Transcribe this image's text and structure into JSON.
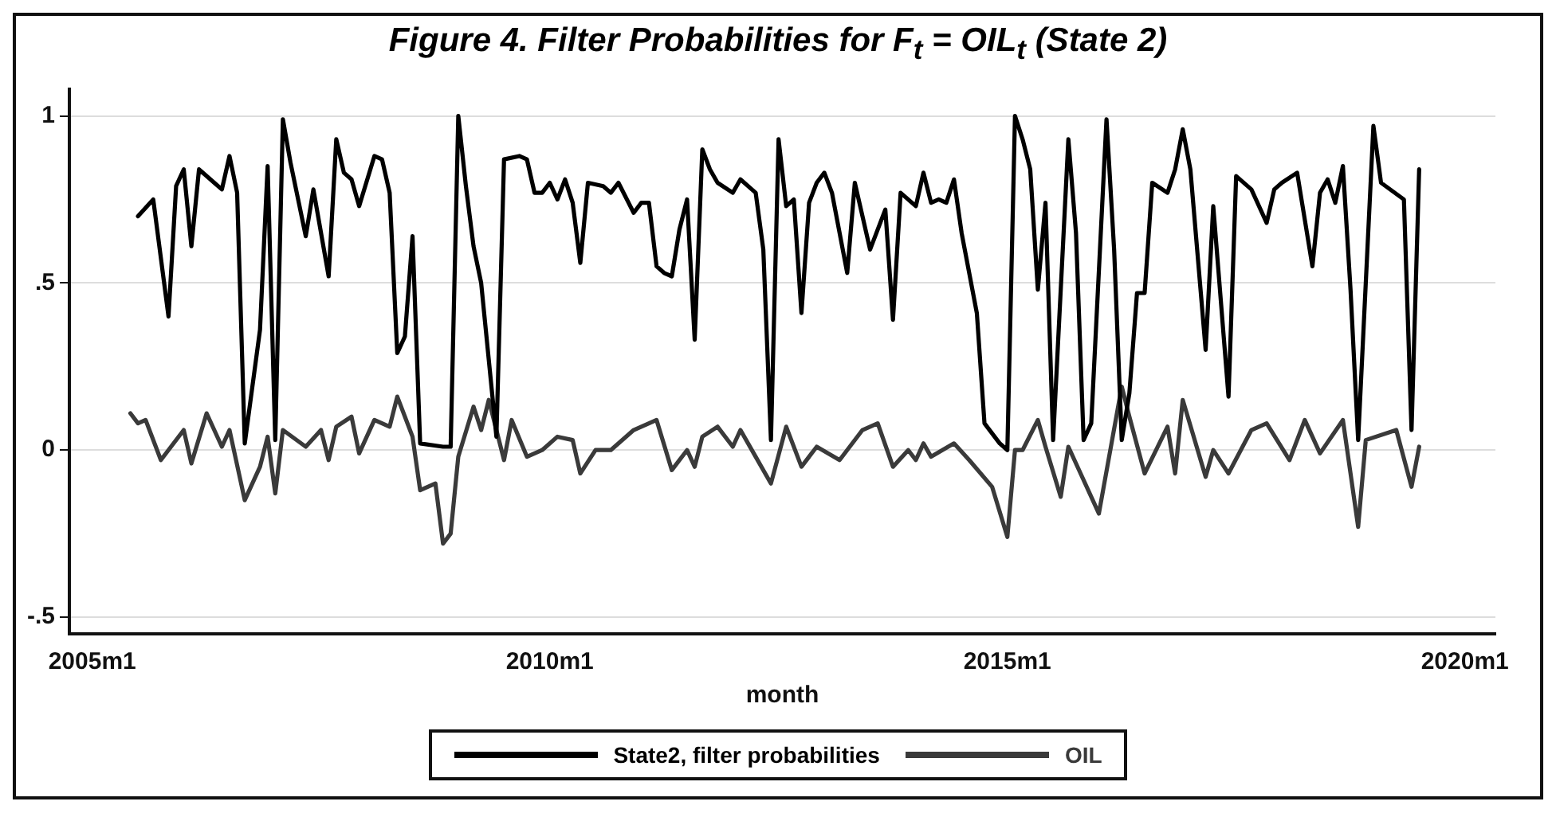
{
  "chart_data": {
    "type": "line",
    "title": "Figure 4. Filter Probabilities for F$_{t}$ = OIL$_{t}$ (State 2)",
    "xlabel": "month",
    "xlim": [
      "2004-10",
      "2020-05"
    ],
    "xticks": [
      {
        "value": "2005-01",
        "label": "2005m1"
      },
      {
        "value": "2010-01",
        "label": "2010m1"
      },
      {
        "value": "2015-01",
        "label": "2015m1"
      },
      {
        "value": "2020-01",
        "label": "2020m1"
      }
    ],
    "ylim": [
      -0.55,
      1.08
    ],
    "yticks": [
      {
        "value": -0.5,
        "label": "-.5"
      },
      0,
      {
        "value": 0.5,
        "label": ".5"
      },
      1
    ],
    "grid": "y",
    "legend": "bottom",
    "series": [
      {
        "name": "State2, filter probabilities",
        "color": "#000000",
        "x": [
          "2005-07",
          "2005-09",
          "2005-11",
          "2005-12",
          "2006-01",
          "2006-02",
          "2006-03",
          "2006-05",
          "2006-06",
          "2006-07",
          "2006-08",
          "2006-09",
          "2006-11",
          "2006-12",
          "2007-01",
          "2007-02",
          "2007-03",
          "2007-05",
          "2007-06",
          "2007-08",
          "2007-09",
          "2007-10",
          "2007-11",
          "2007-12",
          "2008-02",
          "2008-03",
          "2008-04",
          "2008-05",
          "2008-06",
          "2008-07",
          "2008-08",
          "2008-11",
          "2008-12",
          "2009-01",
          "2009-02",
          "2009-03",
          "2009-04",
          "2009-06",
          "2009-07",
          "2009-09",
          "2009-10",
          "2009-11",
          "2009-12",
          "2010-01",
          "2010-02",
          "2010-03",
          "2010-04",
          "2010-05",
          "2010-06",
          "2010-08",
          "2010-09",
          "2010-10",
          "2010-12",
          "2011-01",
          "2011-02",
          "2011-03",
          "2011-04",
          "2011-05",
          "2011-06",
          "2011-07",
          "2011-08",
          "2011-09",
          "2011-10",
          "2011-11",
          "2012-01",
          "2012-02",
          "2012-04",
          "2012-05",
          "2012-06",
          "2012-07",
          "2012-08",
          "2012-09",
          "2012-10",
          "2012-11",
          "2012-12",
          "2013-01",
          "2013-02",
          "2013-04",
          "2013-05",
          "2013-07",
          "2013-09",
          "2013-10",
          "2013-11",
          "2014-01",
          "2014-02",
          "2014-03",
          "2014-04",
          "2014-05",
          "2014-06",
          "2014-07",
          "2014-09",
          "2014-10",
          "2014-12",
          "2015-01",
          "2015-02",
          "2015-03",
          "2015-04",
          "2015-05",
          "2015-06",
          "2015-07",
          "2015-09",
          "2015-10",
          "2015-11",
          "2015-12",
          "2016-02",
          "2016-03",
          "2016-04",
          "2016-05",
          "2016-06",
          "2016-07",
          "2016-08",
          "2016-10",
          "2016-11",
          "2016-12",
          "2017-01",
          "2017-03",
          "2017-04",
          "2017-06",
          "2017-07",
          "2017-09",
          "2017-11",
          "2017-12",
          "2018-01",
          "2018-03",
          "2018-05",
          "2018-06",
          "2018-07",
          "2018-08",
          "2018-09",
          "2018-10",
          "2018-11",
          "2019-01",
          "2019-02",
          "2019-05",
          "2019-06",
          "2019-07"
        ],
        "values": [
          0.7,
          0.75,
          0.4,
          0.79,
          0.84,
          0.61,
          0.84,
          0.8,
          0.78,
          0.88,
          0.77,
          0.02,
          0.36,
          0.85,
          0.03,
          0.99,
          0.86,
          0.64,
          0.78,
          0.52,
          0.93,
          0.83,
          0.81,
          0.73,
          0.88,
          0.87,
          0.77,
          0.29,
          0.34,
          0.64,
          0.02,
          0.01,
          0.01,
          1.0,
          0.79,
          0.61,
          0.5,
          0.04,
          0.87,
          0.88,
          0.87,
          0.77,
          0.77,
          0.8,
          0.75,
          0.81,
          0.74,
          0.56,
          0.8,
          0.79,
          0.77,
          0.8,
          0.71,
          0.74,
          0.74,
          0.55,
          0.53,
          0.52,
          0.66,
          0.75,
          0.33,
          0.9,
          0.84,
          0.8,
          0.77,
          0.81,
          0.77,
          0.6,
          0.03,
          0.93,
          0.73,
          0.75,
          0.41,
          0.74,
          0.8,
          0.83,
          0.77,
          0.53,
          0.8,
          0.6,
          0.72,
          0.39,
          0.77,
          0.73,
          0.83,
          0.74,
          0.75,
          0.74,
          0.81,
          0.65,
          0.41,
          0.08,
          0.02,
          0.0,
          1.0,
          0.93,
          0.84,
          0.48,
          0.74,
          0.03,
          0.93,
          0.65,
          0.03,
          0.08,
          0.99,
          0.6,
          0.03,
          0.17,
          0.47,
          0.47,
          0.8,
          0.77,
          0.84,
          0.96,
          0.84,
          0.3,
          0.73,
          0.16,
          0.82,
          0.78,
          0.68,
          0.78,
          0.8,
          0.83,
          0.55,
          0.77,
          0.81,
          0.74,
          0.85,
          0.48,
          0.03,
          0.97,
          0.8,
          0.75,
          0.06,
          0.84
        ]
      },
      {
        "name": "OIL",
        "color": "#3a3a3a",
        "x": [
          "2005-06",
          "2005-07",
          "2005-08",
          "2005-10",
          "2006-01",
          "2006-02",
          "2006-04",
          "2006-06",
          "2006-07",
          "2006-09",
          "2006-11",
          "2006-12",
          "2007-01",
          "2007-02",
          "2007-05",
          "2007-07",
          "2007-08",
          "2007-09",
          "2007-11",
          "2007-12",
          "2008-02",
          "2008-04",
          "2008-05",
          "2008-07",
          "2008-08",
          "2008-10",
          "2008-11",
          "2008-12",
          "2009-01",
          "2009-03",
          "2009-04",
          "2009-05",
          "2009-07",
          "2009-08",
          "2009-10",
          "2009-12",
          "2010-02",
          "2010-04",
          "2010-05",
          "2010-07",
          "2010-09",
          "2010-12",
          "2011-03",
          "2011-05",
          "2011-07",
          "2011-08",
          "2011-09",
          "2011-11",
          "2012-01",
          "2012-02",
          "2012-04",
          "2012-06",
          "2012-08",
          "2012-10",
          "2012-12",
          "2013-03",
          "2013-06",
          "2013-08",
          "2013-10",
          "2013-12",
          "2014-01",
          "2014-02",
          "2014-03",
          "2014-06",
          "2014-08",
          "2014-11",
          "2015-01",
          "2015-02",
          "2015-03",
          "2015-05",
          "2015-06",
          "2015-08",
          "2015-09",
          "2016-01",
          "2016-04",
          "2016-05",
          "2016-07",
          "2016-10",
          "2016-11",
          "2016-12",
          "2017-03",
          "2017-04",
          "2017-06",
          "2017-09",
          "2017-11",
          "2018-02",
          "2018-04",
          "2018-06",
          "2018-09",
          "2018-11",
          "2018-12",
          "2019-04",
          "2019-06",
          "2019-07"
        ],
        "values": [
          0.11,
          0.08,
          0.09,
          -0.03,
          0.06,
          -0.04,
          0.11,
          0.01,
          0.06,
          -0.15,
          -0.05,
          0.04,
          -0.13,
          0.06,
          0.01,
          0.06,
          -0.03,
          0.07,
          0.1,
          -0.01,
          0.09,
          0.07,
          0.16,
          0.04,
          -0.12,
          -0.1,
          -0.28,
          -0.25,
          -0.02,
          0.13,
          0.06,
          0.15,
          -0.03,
          0.09,
          -0.02,
          0.0,
          0.04,
          0.03,
          -0.07,
          0.0,
          0.0,
          0.06,
          0.09,
          -0.06,
          0.0,
          -0.05,
          0.04,
          0.07,
          0.01,
          0.06,
          -0.02,
          -0.1,
          0.07,
          -0.05,
          0.01,
          -0.03,
          0.06,
          0.08,
          -0.05,
          0.0,
          -0.03,
          0.02,
          -0.02,
          0.02,
          -0.03,
          -0.11,
          -0.26,
          0.0,
          0.0,
          0.09,
          0.01,
          -0.14,
          0.01,
          -0.19,
          0.19,
          0.1,
          -0.07,
          0.07,
          -0.07,
          0.15,
          -0.08,
          0.0,
          -0.07,
          0.06,
          0.08,
          -0.03,
          0.09,
          -0.01,
          0.09,
          -0.23,
          0.03,
          0.06,
          -0.11,
          0.01
        ]
      }
    ]
  }
}
